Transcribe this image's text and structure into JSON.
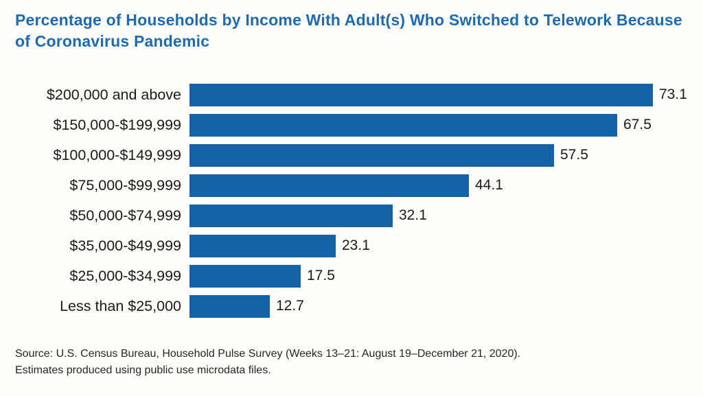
{
  "chart_data": {
    "type": "bar",
    "orientation": "horizontal",
    "title": "Percentage of Households by Income With Adult(s) Who Switched to Telework Because of Coronavirus Pandemic",
    "categories": [
      "$200,000 and above",
      "$150,000-$199,999",
      "$100,000-$149,999",
      "$75,000-$99,999",
      "$50,000-$74,999",
      "$35,000-$49,999",
      "$25,000-$34,999",
      "Less than $25,000"
    ],
    "values": [
      73.1,
      67.5,
      57.5,
      44.1,
      32.1,
      23.1,
      17.5,
      12.7
    ],
    "xlabel": "",
    "ylabel": "",
    "xlim": [
      0,
      78
    ],
    "grid": false,
    "legend": false,
    "value_labels": [
      "73.1",
      "67.5",
      "57.5",
      "44.1",
      "32.1",
      "23.1",
      "17.5",
      "12.7"
    ],
    "bar_color": "#1263A8",
    "title_color": "#1A6BB3",
    "label_color": "#1A1A1A"
  },
  "source": {
    "line1": "Source: U.S. Census Bureau, Household Pulse Survey (Weeks 13–21: August 19–December 21, 2020).",
    "line2": "Estimates produced using public use microdata files."
  }
}
